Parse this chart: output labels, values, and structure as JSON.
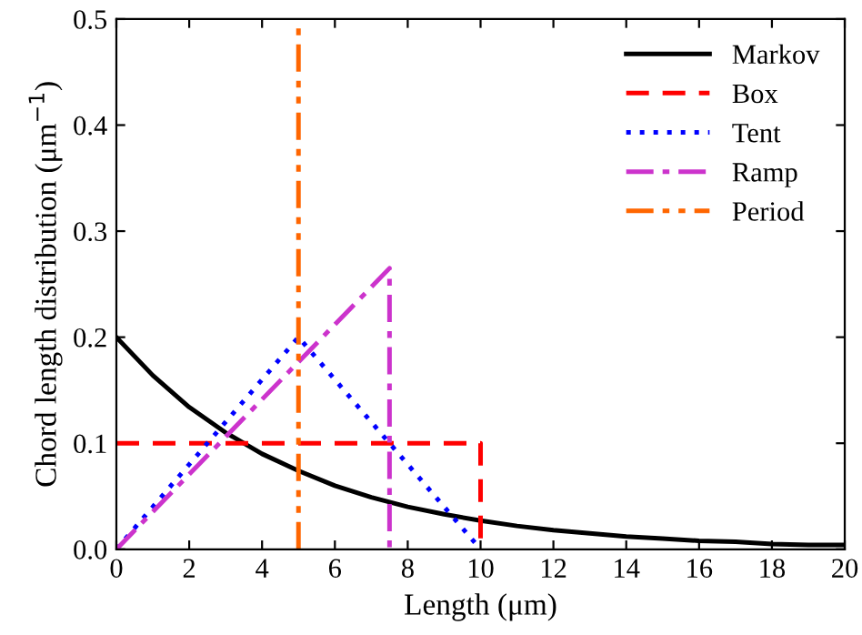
{
  "chart_data": {
    "type": "line",
    "xlabel": "Length (μm)",
    "ylabel": "Chord length distribution (μm$^{−1}$)",
    "xlim": [
      0,
      20
    ],
    "ylim": [
      0,
      0.5
    ],
    "xticks": [
      0,
      2,
      4,
      6,
      8,
      10,
      12,
      14,
      16,
      18,
      20
    ],
    "yticks": [
      {
        "value": 0,
        "label": "0.0"
      },
      0.1,
      0.2,
      0.3,
      0.4,
      0.5
    ],
    "legend": "top right",
    "grid": false,
    "series": [
      {
        "name": "Markov",
        "color": "#000000",
        "line_style": "solid",
        "x": [
          0,
          1,
          2,
          3,
          4,
          5,
          6,
          7,
          8,
          9,
          10,
          11,
          12,
          13,
          14,
          15,
          16,
          17,
          18,
          19,
          20
        ],
        "values": [
          0.2,
          0.164,
          0.134,
          0.11,
          0.09,
          0.074,
          0.06,
          0.049,
          0.04,
          0.033,
          0.027,
          0.022,
          0.018,
          0.015,
          0.012,
          0.01,
          0.008,
          0.007,
          0.005,
          0.004,
          0.004
        ]
      },
      {
        "name": "Box",
        "color": "#ff0000",
        "line_style": "dashed",
        "x": [
          0,
          10,
          10
        ],
        "values": [
          0.1,
          0.1,
          0
        ]
      },
      {
        "name": "Tent",
        "color": "#0000ff",
        "line_style": "dotted",
        "x": [
          0,
          5,
          10
        ],
        "values": [
          0,
          0.2,
          0
        ]
      },
      {
        "name": "Ramp",
        "color": "#cc33cc",
        "line_style": "dashdot",
        "x": [
          0,
          7.5,
          7.5
        ],
        "values": [
          0,
          0.265,
          0
        ]
      },
      {
        "name": "Period",
        "color": "#ff6600",
        "line_style": "dashdotdot",
        "x": [
          5,
          5
        ],
        "values": [
          0,
          0.5
        ]
      }
    ]
  }
}
